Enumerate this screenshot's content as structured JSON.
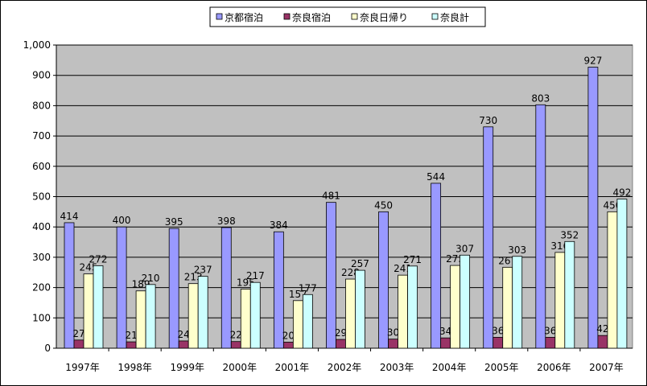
{
  "chart_data": {
    "type": "bar",
    "title": "",
    "xlabel": "",
    "ylabel": "",
    "categories": [
      "1997年",
      "1998年",
      "1999年",
      "2000年",
      "2001年",
      "2002年",
      "2003年",
      "2004年",
      "2005年",
      "2006年",
      "2007年"
    ],
    "series": [
      {
        "name": "京都宿泊",
        "color": "#9999ff",
        "values": [
          414,
          400,
          395,
          398,
          384,
          481,
          450,
          544,
          730,
          803,
          927
        ]
      },
      {
        "name": "奈良宿泊",
        "color": "#993366",
        "values": [
          27,
          21,
          24,
          22,
          20,
          29,
          30,
          34,
          36,
          36,
          42
        ]
      },
      {
        "name": "奈良日帰り",
        "color": "#ffffcc",
        "values": [
          245,
          189,
          213,
          195,
          157,
          228,
          241,
          273,
          267,
          316,
          450
        ]
      },
      {
        "name": "奈良計",
        "color": "#ccffff",
        "values": [
          272,
          210,
          237,
          217,
          177,
          257,
          271,
          307,
          303,
          352,
          492
        ]
      }
    ],
    "ylim": [
      0,
      1000
    ],
    "y_ticks": [
      0,
      100,
      200,
      300,
      400,
      500,
      600,
      700,
      800,
      900,
      1000
    ],
    "y_tick_labels": [
      "0",
      "100",
      "200",
      "300",
      "400",
      "500",
      "600",
      "700",
      "800",
      "900",
      "1,000"
    ],
    "grid": true,
    "plot_background": "#c0c0c0",
    "legend_position": "top"
  }
}
